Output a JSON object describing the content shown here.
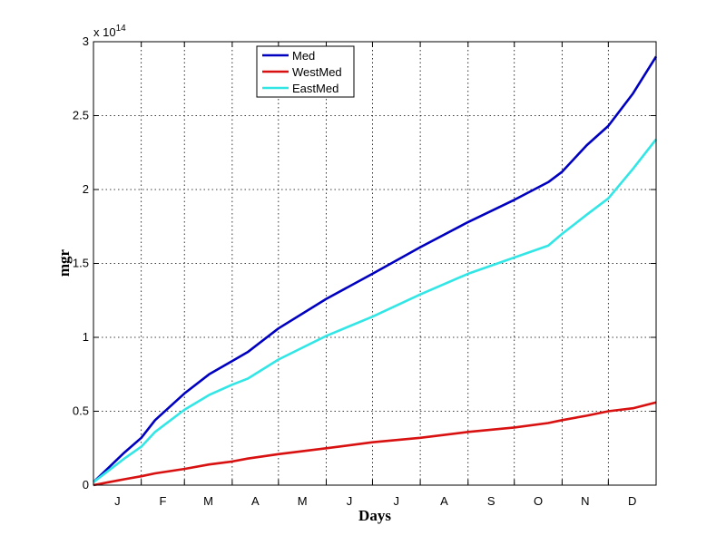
{
  "chart_data": {
    "type": "line",
    "xlabel": "Days",
    "ylabel": "mgr",
    "y_multiplier_text": "x 10",
    "y_multiplier_exponent": "14",
    "ylim": [
      0,
      3
    ],
    "xlim": [
      0,
      365
    ],
    "y_ticks": [
      0,
      0.5,
      1,
      1.5,
      2,
      2.5,
      3
    ],
    "y_tick_labels": [
      "0",
      "0.5",
      "1",
      "1.5",
      "2",
      "2.5",
      "3"
    ],
    "month_ticks": [
      0,
      31,
      59,
      90,
      120,
      151,
      181,
      212,
      243,
      273,
      304,
      334,
      365
    ],
    "month_labels": [
      "J",
      "F",
      "M",
      "A",
      "M",
      "J",
      "J",
      "A",
      "S",
      "O",
      "N",
      "D"
    ],
    "grid": true,
    "legend_position": "top-center",
    "x": [
      0,
      10,
      20,
      31,
      40,
      59,
      75,
      90,
      100,
      120,
      151,
      181,
      212,
      243,
      273,
      295,
      304,
      320,
      334,
      350,
      365
    ],
    "series": [
      {
        "name": "Med",
        "color": "#0000c0",
        "values": [
          0.02,
          0.12,
          0.22,
          0.32,
          0.44,
          0.62,
          0.75,
          0.84,
          0.9,
          1.06,
          1.26,
          1.43,
          1.61,
          1.78,
          1.93,
          2.05,
          2.12,
          2.3,
          2.43,
          2.65,
          2.9
        ]
      },
      {
        "name": "WestMed",
        "color": "#d81010",
        "values": [
          0.0,
          0.02,
          0.04,
          0.06,
          0.08,
          0.11,
          0.14,
          0.16,
          0.18,
          0.21,
          0.25,
          0.29,
          0.32,
          0.36,
          0.39,
          0.42,
          0.44,
          0.47,
          0.5,
          0.52,
          0.56
        ]
      },
      {
        "name": "EastMed",
        "color": "#33e6e6",
        "values": [
          0.02,
          0.1,
          0.18,
          0.26,
          0.36,
          0.51,
          0.61,
          0.68,
          0.72,
          0.85,
          1.01,
          1.14,
          1.29,
          1.43,
          1.54,
          1.62,
          1.7,
          1.83,
          1.94,
          2.14,
          2.34
        ]
      }
    ]
  }
}
